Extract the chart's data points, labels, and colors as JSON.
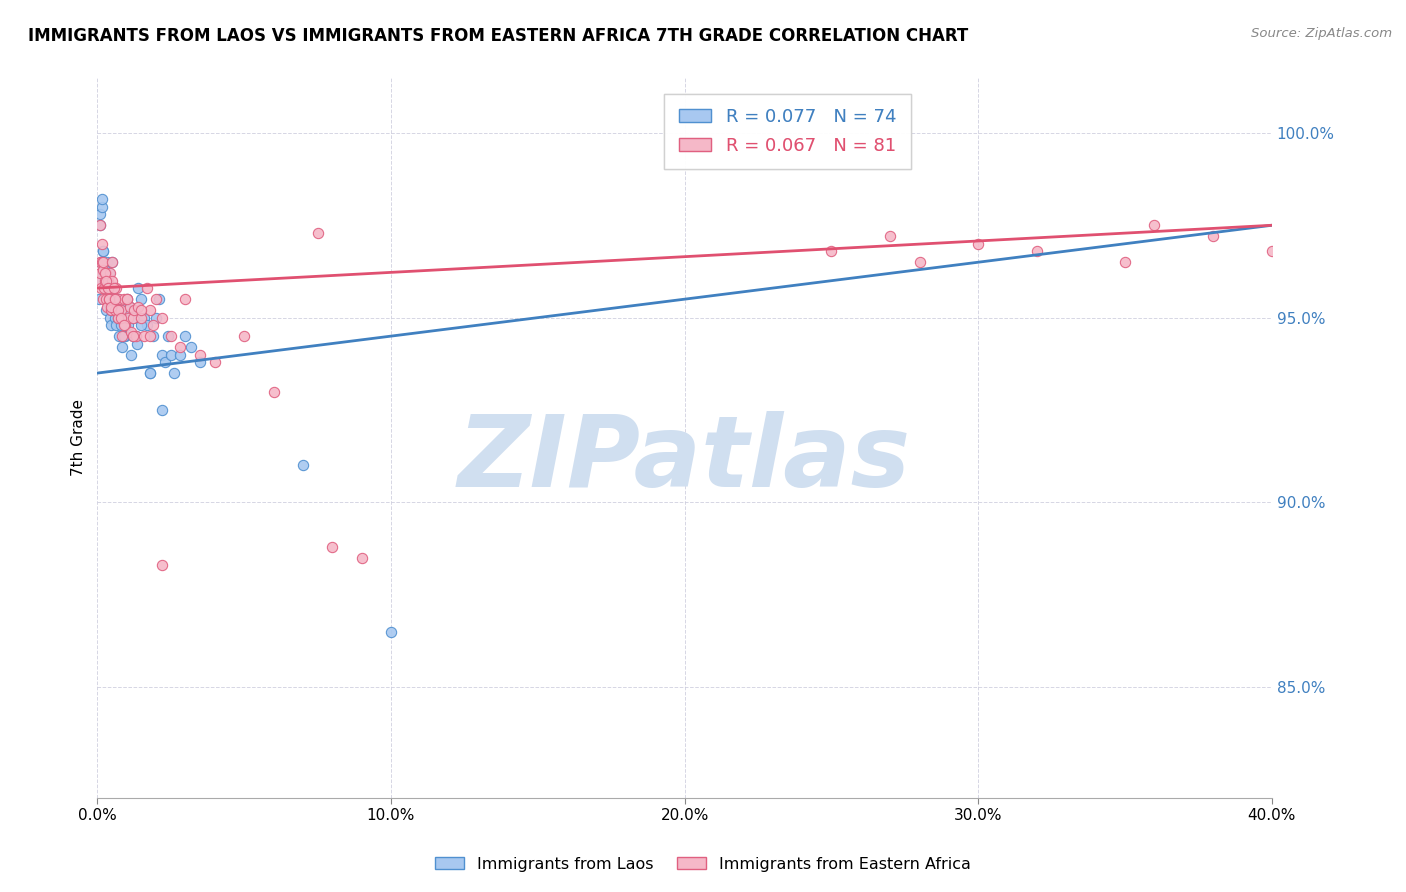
{
  "title": "IMMIGRANTS FROM LAOS VS IMMIGRANTS FROM EASTERN AFRICA 7TH GRADE CORRELATION CHART",
  "source": "Source: ZipAtlas.com",
  "ylabel": "7th Grade",
  "xlim": [
    0.0,
    40.0
  ],
  "ylim": [
    82.0,
    101.5
  ],
  "legend_blue_r": "R = 0.077",
  "legend_blue_n": "N = 74",
  "legend_pink_r": "R = 0.067",
  "legend_pink_n": "N = 81",
  "blue_color": "#a8c8f0",
  "pink_color": "#f5b8c8",
  "blue_edge_color": "#5090d0",
  "pink_edge_color": "#e06080",
  "blue_line_color": "#4080c0",
  "pink_line_color": "#e05070",
  "watermark": "ZIPatlas",
  "watermark_color": "#d0dff0",
  "blue_scatter_x": [
    0.05,
    0.08,
    0.1,
    0.12,
    0.15,
    0.18,
    0.2,
    0.22,
    0.25,
    0.28,
    0.3,
    0.32,
    0.35,
    0.38,
    0.4,
    0.42,
    0.45,
    0.48,
    0.5,
    0.55,
    0.6,
    0.65,
    0.7,
    0.75,
    0.8,
    0.85,
    0.9,
    0.95,
    1.0,
    1.05,
    1.1,
    1.15,
    1.2,
    1.25,
    1.3,
    1.35,
    1.4,
    1.5,
    1.6,
    1.7,
    1.8,
    1.9,
    2.0,
    2.1,
    2.2,
    2.3,
    2.4,
    2.5,
    2.6,
    2.8,
    3.0,
    3.2,
    3.5,
    0.1,
    0.15,
    0.2,
    0.25,
    0.3,
    0.35,
    0.4,
    0.45,
    0.5,
    0.55,
    0.6,
    0.7,
    0.8,
    0.9,
    1.0,
    1.2,
    1.5,
    1.8,
    2.2,
    7.0,
    10.0
  ],
  "blue_scatter_y": [
    95.5,
    96.0,
    97.8,
    96.5,
    98.0,
    96.2,
    96.8,
    95.8,
    96.0,
    95.5,
    95.2,
    96.5,
    95.8,
    95.5,
    96.2,
    95.0,
    95.3,
    94.8,
    95.6,
    95.2,
    95.0,
    94.8,
    95.5,
    94.5,
    95.2,
    94.2,
    95.0,
    94.5,
    95.5,
    94.8,
    95.3,
    94.0,
    95.0,
    95.2,
    94.5,
    94.3,
    95.8,
    95.5,
    95.0,
    94.8,
    93.5,
    94.5,
    95.0,
    95.5,
    94.0,
    93.8,
    94.5,
    94.0,
    93.5,
    94.0,
    94.5,
    94.2,
    93.8,
    97.5,
    98.2,
    96.8,
    96.3,
    96.0,
    95.7,
    95.5,
    95.2,
    96.5,
    95.8,
    95.3,
    95.0,
    94.8,
    94.5,
    95.2,
    94.5,
    94.8,
    93.5,
    92.5,
    91.0,
    86.5
  ],
  "pink_scatter_x": [
    0.05,
    0.08,
    0.1,
    0.12,
    0.15,
    0.18,
    0.2,
    0.22,
    0.25,
    0.28,
    0.3,
    0.32,
    0.35,
    0.38,
    0.4,
    0.42,
    0.45,
    0.48,
    0.5,
    0.55,
    0.6,
    0.65,
    0.7,
    0.75,
    0.8,
    0.85,
    0.9,
    0.95,
    1.0,
    1.05,
    1.1,
    1.15,
    1.2,
    1.25,
    1.3,
    1.4,
    1.5,
    1.6,
    1.7,
    1.8,
    1.9,
    2.0,
    2.2,
    2.5,
    2.8,
    3.0,
    3.5,
    4.0,
    5.0,
    6.0,
    0.1,
    0.15,
    0.2,
    0.25,
    0.3,
    0.35,
    0.4,
    0.45,
    0.5,
    0.55,
    0.6,
    0.7,
    0.8,
    0.9,
    1.0,
    1.2,
    1.5,
    1.8,
    2.2,
    8.0,
    9.0,
    25.0,
    27.0,
    28.0,
    30.0,
    32.0,
    35.0,
    36.0,
    38.0,
    40.0,
    7.5
  ],
  "pink_scatter_y": [
    96.0,
    96.5,
    96.2,
    95.8,
    96.5,
    95.5,
    96.3,
    95.8,
    96.0,
    95.5,
    96.2,
    95.3,
    96.0,
    95.8,
    95.5,
    96.2,
    95.2,
    95.8,
    96.0,
    95.5,
    95.2,
    95.8,
    95.0,
    95.5,
    95.2,
    94.5,
    95.5,
    94.8,
    95.5,
    95.0,
    95.3,
    94.6,
    95.0,
    95.2,
    94.5,
    95.3,
    95.0,
    94.5,
    95.8,
    95.2,
    94.8,
    95.5,
    95.0,
    94.5,
    94.2,
    95.5,
    94.0,
    93.8,
    94.5,
    93.0,
    97.5,
    97.0,
    96.5,
    96.2,
    96.0,
    95.8,
    95.5,
    95.3,
    96.5,
    95.8,
    95.5,
    95.2,
    95.0,
    94.8,
    95.5,
    94.5,
    95.2,
    94.5,
    88.3,
    88.8,
    88.5,
    96.8,
    97.2,
    96.5,
    97.0,
    96.8,
    96.5,
    97.5,
    97.2,
    96.8,
    97.3
  ]
}
